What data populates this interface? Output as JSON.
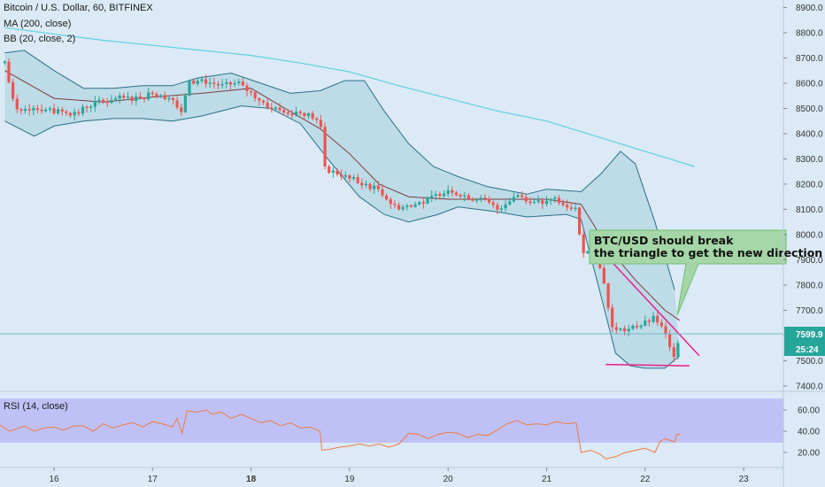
{
  "legend": {
    "main": "Bitcoin / U.S. Dollar, 60, BITFINEX",
    "ma": "MA (200, close)",
    "bb": "BB (20, close, 2)",
    "rsi": "RSI (14, close)"
  },
  "price_badge": {
    "price": "7599.9",
    "countdown": "25:24"
  },
  "annotation": {
    "line1": "BTC/USD should break",
    "line2": "the triangle to get the new direction"
  },
  "colors": {
    "up": "#26a69a",
    "down": "#ef5350",
    "ma": "#5fd0e0",
    "bb_basis": "#7a3d3d",
    "bb_band": "#2b6f86",
    "trend": "#e91e8c",
    "rsi": "#f07b3f",
    "rsi_band": "#b5b3f5",
    "note": "#a5d6a7"
  },
  "chart_data": [
    {
      "type": "candlestick",
      "title": "Bitcoin / U.S. Dollar, 60, BITFINEX",
      "xlabel": "",
      "ylabel": "",
      "x_ticks": [
        "16",
        "17",
        "18",
        "19",
        "20",
        "21",
        "22",
        "23"
      ],
      "y_ticks": [
        "8900.0",
        "8800.0",
        "8700.0",
        "8600.0",
        "8500.0",
        "8400.0",
        "8300.0",
        "8200.0",
        "8100.0",
        "8000.0",
        "7900.0",
        "7800.0",
        "7700.0",
        "7600.0",
        "7500.0",
        "7400.0"
      ],
      "ylim": [
        7360,
        8930
      ],
      "last_price": 7599.9,
      "close_path": [
        [
          15.5,
          8680
        ],
        [
          15.6,
          8500
        ],
        [
          15.8,
          8510
        ],
        [
          16.0,
          8490
        ],
        [
          16.2,
          8480
        ],
        [
          16.4,
          8520
        ],
        [
          16.6,
          8540
        ],
        [
          16.8,
          8540
        ],
        [
          17.0,
          8560
        ],
        [
          17.2,
          8540
        ],
        [
          17.3,
          8470
        ],
        [
          17.35,
          8600
        ],
        [
          17.5,
          8610
        ],
        [
          17.7,
          8590
        ],
        [
          17.85,
          8600
        ],
        [
          18.0,
          8560
        ],
        [
          18.2,
          8500
        ],
        [
          18.4,
          8490
        ],
        [
          18.55,
          8480
        ],
        [
          18.7,
          8450
        ],
        [
          18.75,
          8260
        ],
        [
          18.9,
          8240
        ],
        [
          19.1,
          8200
        ],
        [
          19.3,
          8180
        ],
        [
          19.45,
          8110
        ],
        [
          19.6,
          8110
        ],
        [
          19.8,
          8140
        ],
        [
          20.0,
          8180
        ],
        [
          20.2,
          8150
        ],
        [
          20.35,
          8140
        ],
        [
          20.5,
          8100
        ],
        [
          20.6,
          8130
        ],
        [
          20.7,
          8160
        ],
        [
          20.9,
          8120
        ],
        [
          21.1,
          8140
        ],
        [
          21.3,
          8100
        ],
        [
          21.35,
          7940
        ],
        [
          21.5,
          7920
        ],
        [
          21.6,
          7790
        ],
        [
          21.65,
          7630
        ],
        [
          21.8,
          7620
        ],
        [
          21.95,
          7640
        ],
        [
          22.1,
          7670
        ],
        [
          22.2,
          7610
        ],
        [
          22.28,
          7510
        ],
        [
          22.35,
          7600
        ]
      ],
      "ma200": [
        [
          15.5,
          8820
        ],
        [
          16.5,
          8770
        ],
        [
          17.5,
          8730
        ],
        [
          18.0,
          8710
        ],
        [
          18.5,
          8680
        ],
        [
          19.0,
          8645
        ],
        [
          19.5,
          8590
        ],
        [
          20.0,
          8540
        ],
        [
          20.5,
          8490
        ],
        [
          21.0,
          8450
        ],
        [
          21.5,
          8390
        ],
        [
          22.0,
          8330
        ],
        [
          22.5,
          8270
        ]
      ],
      "bb_basis": [
        [
          15.5,
          8650
        ],
        [
          16.0,
          8540
        ],
        [
          16.5,
          8525
        ],
        [
          17.0,
          8545
        ],
        [
          17.5,
          8560
        ],
        [
          18.0,
          8580
        ],
        [
          18.3,
          8510
        ],
        [
          18.7,
          8420
        ],
        [
          19.0,
          8320
        ],
        [
          19.3,
          8200
        ],
        [
          19.6,
          8150
        ],
        [
          20.0,
          8140
        ],
        [
          20.5,
          8140
        ],
        [
          21.0,
          8140
        ],
        [
          21.35,
          8120
        ],
        [
          21.6,
          7960
        ],
        [
          21.9,
          7820
        ],
        [
          22.2,
          7700
        ],
        [
          22.35,
          7660
        ]
      ],
      "bb_upper": [
        [
          15.5,
          8720
        ],
        [
          15.7,
          8730
        ],
        [
          16.0,
          8650
        ],
        [
          16.3,
          8580
        ],
        [
          16.6,
          8580
        ],
        [
          16.9,
          8590
        ],
        [
          17.2,
          8590
        ],
        [
          17.45,
          8620
        ],
        [
          17.8,
          8640
        ],
        [
          18.1,
          8600
        ],
        [
          18.4,
          8560
        ],
        [
          18.7,
          8570
        ],
        [
          18.95,
          8610
        ],
        [
          19.15,
          8610
        ],
        [
          19.35,
          8490
        ],
        [
          19.6,
          8360
        ],
        [
          19.85,
          8270
        ],
        [
          20.1,
          8230
        ],
        [
          20.4,
          8190
        ],
        [
          20.8,
          8160
        ],
        [
          21.0,
          8180
        ],
        [
          21.35,
          8170
        ],
        [
          21.55,
          8240
        ],
        [
          21.75,
          8330
        ],
        [
          21.9,
          8280
        ],
        [
          22.1,
          8050
        ],
        [
          22.3,
          7780
        ]
      ],
      "bb_lower": [
        [
          15.5,
          8450
        ],
        [
          15.8,
          8390
        ],
        [
          16.0,
          8430
        ],
        [
          16.3,
          8450
        ],
        [
          16.6,
          8460
        ],
        [
          16.9,
          8460
        ],
        [
          17.2,
          8450
        ],
        [
          17.5,
          8470
        ],
        [
          17.9,
          8510
        ],
        [
          18.2,
          8500
        ],
        [
          18.5,
          8440
        ],
        [
          18.8,
          8290
        ],
        [
          19.1,
          8150
        ],
        [
          19.35,
          8080
        ],
        [
          19.6,
          8050
        ],
        [
          19.9,
          8080
        ],
        [
          20.1,
          8110
        ],
        [
          20.5,
          8090
        ],
        [
          20.8,
          8070
        ],
        [
          21.2,
          8080
        ],
        [
          21.35,
          8060
        ],
        [
          21.55,
          7760
        ],
        [
          21.7,
          7530
        ],
        [
          21.85,
          7480
        ],
        [
          22.0,
          7470
        ],
        [
          22.2,
          7470
        ],
        [
          22.35,
          7520
        ]
      ],
      "trendlines": [
        [
          [
            21.45,
            7980
          ],
          [
            22.55,
            7520
          ]
        ],
        [
          [
            21.6,
            7485
          ],
          [
            22.45,
            7480
          ]
        ]
      ]
    },
    {
      "type": "line",
      "title": "RSI (14, close)",
      "y_ticks": [
        "60.00",
        "40.00",
        "20.00"
      ],
      "ylim": [
        12,
        72
      ],
      "band": [
        30,
        70
      ],
      "values": [
        [
          15.45,
          46
        ],
        [
          15.55,
          40
        ],
        [
          15.7,
          45
        ],
        [
          15.8,
          40
        ],
        [
          15.9,
          43
        ],
        [
          16.0,
          44
        ],
        [
          16.1,
          41
        ],
        [
          16.2,
          45
        ],
        [
          16.3,
          45
        ],
        [
          16.4,
          40
        ],
        [
          16.5,
          47
        ],
        [
          16.6,
          43
        ],
        [
          16.7,
          46
        ],
        [
          16.8,
          48
        ],
        [
          16.9,
          44
        ],
        [
          17.0,
          49
        ],
        [
          17.1,
          47
        ],
        [
          17.2,
          44
        ],
        [
          17.25,
          52
        ],
        [
          17.3,
          38
        ],
        [
          17.35,
          59
        ],
        [
          17.45,
          58
        ],
        [
          17.55,
          60
        ],
        [
          17.6,
          56
        ],
        [
          17.7,
          58
        ],
        [
          17.8,
          52
        ],
        [
          17.9,
          56
        ],
        [
          18.0,
          52
        ],
        [
          18.1,
          48
        ],
        [
          18.2,
          50
        ],
        [
          18.3,
          45
        ],
        [
          18.4,
          48
        ],
        [
          18.5,
          43
        ],
        [
          18.6,
          44
        ],
        [
          18.7,
          40
        ],
        [
          18.72,
          22
        ],
        [
          18.8,
          23
        ],
        [
          18.9,
          25
        ],
        [
          19.0,
          26
        ],
        [
          19.1,
          28
        ],
        [
          19.2,
          26
        ],
        [
          19.3,
          28
        ],
        [
          19.4,
          25
        ],
        [
          19.5,
          28
        ],
        [
          19.6,
          38
        ],
        [
          19.7,
          37
        ],
        [
          19.8,
          33
        ],
        [
          19.9,
          37
        ],
        [
          20.0,
          39
        ],
        [
          20.1,
          38
        ],
        [
          20.2,
          34
        ],
        [
          20.3,
          37
        ],
        [
          20.4,
          36
        ],
        [
          20.5,
          41
        ],
        [
          20.6,
          47
        ],
        [
          20.7,
          50
        ],
        [
          20.8,
          46
        ],
        [
          20.9,
          47
        ],
        [
          21.0,
          46
        ],
        [
          21.1,
          49
        ],
        [
          21.2,
          47
        ],
        [
          21.3,
          48
        ],
        [
          21.35,
          20
        ],
        [
          21.45,
          22
        ],
        [
          21.55,
          18
        ],
        [
          21.6,
          14
        ],
        [
          21.7,
          16
        ],
        [
          21.8,
          20
        ],
        [
          21.9,
          22
        ],
        [
          22.0,
          24
        ],
        [
          22.1,
          20
        ],
        [
          22.15,
          30
        ],
        [
          22.2,
          33
        ],
        [
          22.3,
          30
        ],
        [
          22.32,
          37
        ],
        [
          22.36,
          37
        ]
      ]
    }
  ]
}
